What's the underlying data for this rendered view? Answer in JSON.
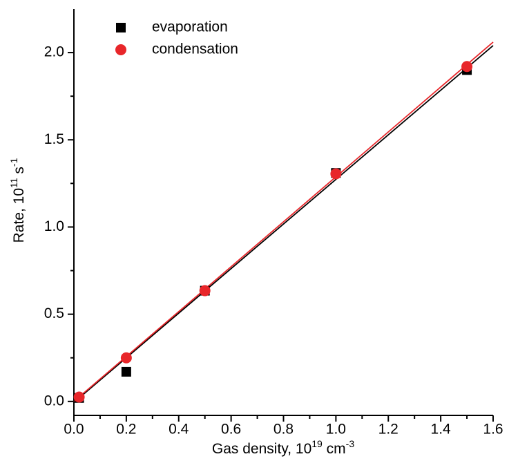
{
  "chart_data": {
    "type": "scatter",
    "x_label": [
      "Gas density, 10",
      "19",
      " cm",
      "-3"
    ],
    "y_label": [
      "Rate, 10",
      "11",
      " s",
      "-1"
    ],
    "xlim": [
      0,
      1.6
    ],
    "ylim": [
      -0.08,
      2.25
    ],
    "xticks": [
      {
        "value": 0,
        "label": "0.0"
      },
      {
        "value": 0.2,
        "label": "0.2"
      },
      {
        "value": 0.4,
        "label": "0.4"
      },
      {
        "value": 0.6,
        "label": "0.6"
      },
      {
        "value": 0.8,
        "label": "0.8"
      },
      {
        "value": 1.0,
        "label": "1.0"
      },
      {
        "value": 1.2,
        "label": "1.2"
      },
      {
        "value": 1.4,
        "label": "1.4"
      },
      {
        "value": 1.6,
        "label": "1.6"
      }
    ],
    "yticks": [
      {
        "value": 0,
        "label": "0.0"
      },
      {
        "value": 0.5,
        "label": "0.5"
      },
      {
        "value": 1.0,
        "label": "1.0"
      },
      {
        "value": 1.5,
        "label": "1.5"
      },
      {
        "value": 2.0,
        "label": "2.0"
      }
    ],
    "legend": "upper left",
    "series": [
      {
        "name": "evaporation",
        "color": "#000000",
        "marker": "square",
        "x": [
          0.02,
          0.2,
          0.5,
          1.0,
          1.5
        ],
        "values": [
          0.02,
          0.17,
          0.635,
          1.31,
          1.9
        ]
      },
      {
        "name": "condensation",
        "color": "#e8262a",
        "marker": "circle",
        "x": [
          0.02,
          0.2,
          0.5,
          1.0,
          1.5
        ],
        "values": [
          0.025,
          0.25,
          0.635,
          1.305,
          1.92
        ]
      }
    ],
    "fit_lines": [
      {
        "color": "#000000",
        "x": [
          0.02,
          1.6
        ],
        "values": [
          0.02,
          2.04
        ]
      },
      {
        "color": "#e8262a",
        "x": [
          0,
          1.6
        ],
        "values": [
          0,
          2.06
        ]
      }
    ]
  }
}
